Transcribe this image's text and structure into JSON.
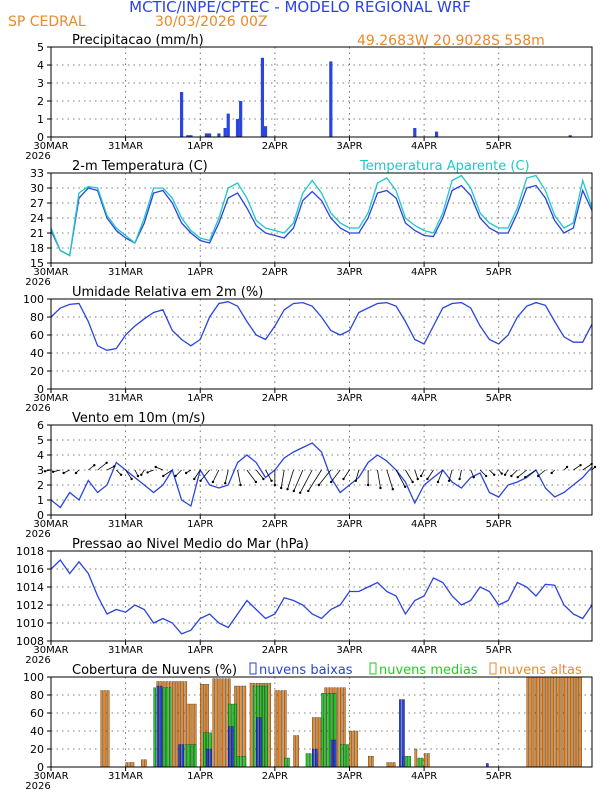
{
  "header": {
    "title": "MCTIC/INPE/CPTEC - MODELO REGIONAL WRF",
    "station": "SP CEDRAL",
    "run": "30/03/2026 00Z",
    "coords": "49.2683W 20.9028S 558m"
  },
  "colors": {
    "blue": "#2a44e0",
    "orange": "#e88a2a",
    "cyan": "#1ec8c8",
    "green": "#22cc22",
    "black": "#000000",
    "grid": "#555555"
  },
  "time_axis": {
    "labels": [
      "30MAR",
      "31MAR",
      "1APR",
      "2APR",
      "3APR",
      "4APR",
      "5APR"
    ],
    "label_hours": [
      0,
      24,
      48,
      72,
      96,
      120,
      144
    ],
    "year": "2026",
    "range_hours": [
      0,
      174
    ]
  },
  "chart_data": [
    {
      "id": "precip",
      "type": "bar",
      "title": "Precipitacao (mm/h)",
      "ylim": [
        0,
        5
      ],
      "yticks": [
        0,
        1,
        2,
        3,
        4,
        5
      ],
      "x_hours": [
        42,
        44,
        45,
        50,
        51,
        54,
        56,
        57,
        60,
        61,
        68,
        69,
        90,
        117,
        124,
        167
      ],
      "values": [
        2.5,
        0.1,
        0.1,
        0.2,
        0.2,
        0.2,
        0.5,
        1.3,
        1.0,
        2.0,
        4.4,
        0.6,
        4.2,
        0.5,
        0.3,
        0.1
      ]
    },
    {
      "id": "temp",
      "type": "line",
      "title": "2-m Temperatura (C)",
      "legend2": "Temperatura Aparente (C)",
      "ylim": [
        15,
        33
      ],
      "yticks": [
        15,
        18,
        21,
        24,
        27,
        30,
        33
      ],
      "series": [
        {
          "name": "2-m Temperatura (C)",
          "color": "blue",
          "x": [
            0,
            3,
            6,
            9,
            12,
            15,
            18,
            21,
            24,
            27,
            30,
            33,
            36,
            39,
            42,
            45,
            48,
            51,
            54,
            57,
            60,
            63,
            66,
            69,
            72,
            75,
            78,
            81,
            84,
            87,
            90,
            93,
            96,
            99,
            102,
            105,
            108,
            111,
            114,
            117,
            120,
            123,
            126,
            129,
            132,
            135,
            138,
            141,
            144,
            147,
            150,
            153,
            156,
            159,
            162,
            165,
            168,
            171,
            174
          ],
          "y": [
            21.5,
            17.5,
            16.5,
            28,
            30,
            29.5,
            24,
            21.5,
            20,
            19,
            23,
            29,
            29.5,
            27,
            23,
            21,
            19.5,
            19,
            23,
            28,
            29,
            26,
            22.5,
            21,
            20.5,
            20,
            22,
            27.5,
            29.3,
            27.5,
            24,
            22,
            21,
            21,
            24,
            29,
            29.5,
            28,
            23,
            21.5,
            20.5,
            20.3,
            24,
            29.5,
            30.5,
            28.5,
            24,
            22,
            21,
            21,
            25,
            30,
            30.5,
            28,
            23.5,
            21,
            22,
            29.5,
            25.5
          ]
        },
        {
          "name": "Temperatura Aparente (C)",
          "color": "cyan",
          "x": [
            0,
            3,
            6,
            9,
            12,
            15,
            18,
            21,
            24,
            27,
            30,
            33,
            36,
            39,
            42,
            45,
            48,
            51,
            54,
            57,
            60,
            63,
            66,
            69,
            72,
            75,
            78,
            81,
            84,
            87,
            90,
            93,
            96,
            99,
            102,
            105,
            108,
            111,
            114,
            117,
            120,
            123,
            126,
            129,
            132,
            135,
            138,
            141,
            144,
            147,
            150,
            153,
            156,
            159,
            162,
            165,
            168,
            171,
            174
          ],
          "y": [
            22,
            17.5,
            16.5,
            29,
            30.3,
            30,
            24.5,
            22,
            20.5,
            19,
            24,
            30,
            30,
            28,
            24,
            21.5,
            20,
            19.5,
            24,
            30,
            31,
            28,
            23.5,
            22,
            21.5,
            21,
            23,
            29,
            31.5,
            29,
            25,
            23,
            22,
            22,
            25,
            31,
            32,
            29.5,
            24,
            22.5,
            21.5,
            21,
            25,
            31.5,
            32.5,
            30,
            25,
            23,
            22,
            22,
            26,
            32,
            32.5,
            29.5,
            24.5,
            22,
            23,
            31.5,
            26
          ]
        }
      ]
    },
    {
      "id": "rh",
      "type": "line",
      "title": "Umidade Relativa em 2m (%)",
      "ylim": [
        0,
        100
      ],
      "yticks": [
        0,
        20,
        40,
        60,
        80,
        100
      ],
      "series": [
        {
          "name": "Umidade Relativa em 2m (%)",
          "color": "blue",
          "x": [
            0,
            3,
            6,
            9,
            12,
            15,
            18,
            21,
            24,
            27,
            30,
            33,
            36,
            39,
            42,
            45,
            48,
            51,
            54,
            57,
            60,
            63,
            66,
            69,
            72,
            75,
            78,
            81,
            84,
            87,
            90,
            93,
            96,
            99,
            102,
            105,
            108,
            111,
            114,
            117,
            120,
            123,
            126,
            129,
            132,
            135,
            138,
            141,
            144,
            147,
            150,
            153,
            156,
            159,
            162,
            165,
            168,
            171,
            174
          ],
          "y": [
            80,
            90,
            94,
            95,
            75,
            48,
            43,
            45,
            60,
            70,
            78,
            85,
            88,
            65,
            55,
            48,
            55,
            80,
            95,
            97,
            92,
            75,
            60,
            55,
            70,
            88,
            95,
            96,
            92,
            80,
            65,
            60,
            65,
            85,
            90,
            95,
            96,
            92,
            75,
            55,
            50,
            70,
            90,
            95,
            96,
            90,
            70,
            55,
            50,
            60,
            80,
            92,
            96,
            93,
            75,
            58,
            52,
            52,
            72
          ]
        }
      ]
    },
    {
      "id": "wind",
      "type": "line",
      "title": "Vento em 10m (m/s)",
      "ylim": [
        0,
        6
      ],
      "yticks": [
        0,
        1,
        2,
        3,
        4,
        5,
        6
      ],
      "series": [
        {
          "name": "Vento em 10m (m/s)",
          "color": "blue",
          "x": [
            0,
            3,
            6,
            9,
            12,
            15,
            18,
            21,
            24,
            27,
            30,
            33,
            36,
            39,
            42,
            45,
            48,
            51,
            54,
            57,
            60,
            63,
            66,
            69,
            72,
            75,
            78,
            81,
            84,
            87,
            90,
            93,
            96,
            99,
            102,
            105,
            108,
            111,
            114,
            117,
            120,
            123,
            126,
            129,
            132,
            135,
            138,
            141,
            144,
            147,
            150,
            153,
            156,
            159,
            162,
            165,
            168,
            171,
            174
          ],
          "y": [
            1,
            0.5,
            1.5,
            1.0,
            2.3,
            1.5,
            2.0,
            3.5,
            3.0,
            2.5,
            2.0,
            1.5,
            2.0,
            3.0,
            1.0,
            0.6,
            3.0,
            2.0,
            1.8,
            2.0,
            3.5,
            4.0,
            3.5,
            2.5,
            3.0,
            3.8,
            4.2,
            4.5,
            4.8,
            4.2,
            2.5,
            1.5,
            2.0,
            2.5,
            3.5,
            4.0,
            3.6,
            3.0,
            2.2,
            0.8,
            2.0,
            2.5,
            3.0,
            2.2,
            1.8,
            2.5,
            2.8,
            1.5,
            1.2,
            2.0,
            2.2,
            2.5,
            3.0,
            1.8,
            1.2,
            1.5,
            2.0,
            2.5,
            3.2
          ]
        }
      ]
    },
    {
      "id": "pres",
      "type": "line",
      "title": "Pressao ao Nivel Medio do Mar (hPa)",
      "ylim": [
        1008,
        1018
      ],
      "yticks": [
        1008,
        1010,
        1012,
        1014,
        1016,
        1018
      ],
      "series": [
        {
          "name": "Pressao ao Nivel Medio do Mar (hPa)",
          "color": "blue",
          "x": [
            0,
            3,
            6,
            9,
            12,
            15,
            18,
            21,
            24,
            27,
            30,
            33,
            36,
            39,
            42,
            45,
            48,
            51,
            54,
            57,
            60,
            63,
            66,
            69,
            72,
            75,
            78,
            81,
            84,
            87,
            90,
            93,
            96,
            99,
            102,
            105,
            108,
            111,
            114,
            117,
            120,
            123,
            126,
            129,
            132,
            135,
            138,
            141,
            144,
            147,
            150,
            153,
            156,
            159,
            162,
            165,
            168,
            171,
            174
          ],
          "y": [
            1016,
            1017,
            1015.5,
            1016.8,
            1015.5,
            1013,
            1011,
            1011.5,
            1011.2,
            1012,
            1011.5,
            1010,
            1010.5,
            1010,
            1008.8,
            1009.2,
            1010.5,
            1011,
            1010,
            1009.5,
            1011,
            1012.5,
            1011.5,
            1010.5,
            1011,
            1012.8,
            1012.5,
            1012,
            1011,
            1010.5,
            1011.5,
            1012,
            1013.5,
            1013.5,
            1014,
            1014.5,
            1013.5,
            1013,
            1011,
            1012.5,
            1013,
            1015,
            1014.5,
            1013,
            1012,
            1012.5,
            1014,
            1013.5,
            1012,
            1012.5,
            1014.5,
            1014,
            1013,
            1014.3,
            1014.2,
            1012,
            1011,
            1010.5,
            1012
          ]
        }
      ]
    },
    {
      "id": "clouds",
      "type": "bar",
      "title": "Cobertura de Nuvens (%)",
      "legend": [
        "nuvens baixas",
        "nuvens medias",
        "nuvens altas"
      ],
      "ylim": [
        0,
        100
      ],
      "yticks": [
        0,
        20,
        40,
        60,
        80,
        100
      ],
      "series": [
        {
          "name": "nuvens altas",
          "color": "orange",
          "ranges": [
            [
              16,
              19,
              85
            ],
            [
              24,
              27,
              5
            ],
            [
              29,
              31,
              8
            ],
            [
              34,
              44,
              95
            ],
            [
              44,
              47,
              70
            ],
            [
              48,
              51,
              92
            ],
            [
              52,
              58,
              98
            ],
            [
              59,
              63,
              90
            ],
            [
              64,
              71,
              93
            ],
            [
              72,
              76,
              85
            ],
            [
              78,
              80,
              35
            ],
            [
              84,
              88,
              55
            ],
            [
              88,
              95,
              88
            ],
            [
              96,
              99,
              40
            ],
            [
              102,
              104,
              12
            ],
            [
              108,
              111,
              5
            ],
            [
              117,
              118,
              20
            ],
            [
              120,
              122,
              15
            ],
            [
              153,
              171,
              100
            ]
          ]
        },
        {
          "name": "nuvens medias",
          "color": "green",
          "ranges": [
            [
              33,
              39,
              88
            ],
            [
              43,
              47,
              25
            ],
            [
              49,
              52,
              38
            ],
            [
              57,
              60,
              70
            ],
            [
              60,
              63,
              12
            ],
            [
              65,
              70,
              90
            ],
            [
              75,
              77,
              10
            ],
            [
              82,
              86,
              15
            ],
            [
              87,
              92,
              82
            ],
            [
              93,
              96,
              25
            ],
            [
              113,
              116,
              12
            ],
            [
              118,
              120,
              10
            ]
          ]
        },
        {
          "name": "nuvens baixas",
          "color": "blue",
          "ranges": [
            [
              34,
              36,
              90
            ],
            [
              41,
              43,
              25
            ],
            [
              50,
              52,
              20
            ],
            [
              57,
              59,
              45
            ],
            [
              66,
              68,
              55
            ],
            [
              84,
              86,
              20
            ],
            [
              90,
              92,
              30
            ],
            [
              112,
              114,
              75
            ],
            [
              140,
              141,
              4
            ]
          ]
        }
      ]
    }
  ],
  "wind_vectors": {
    "x_hours": [
      0,
      3,
      6,
      9,
      12,
      15,
      18,
      21,
      24,
      27,
      30,
      33,
      36,
      39,
      42,
      45,
      48,
      51,
      54,
      57,
      60,
      63,
      66,
      69,
      72,
      75,
      78,
      81,
      84,
      87,
      90,
      93,
      96,
      99,
      102,
      105,
      108,
      111,
      114,
      117,
      120,
      123,
      126,
      129,
      132,
      135,
      138,
      141,
      144,
      147,
      150,
      153,
      156,
      159,
      162,
      165,
      168,
      171,
      174
    ],
    "u": [
      -1,
      -1.2,
      -1,
      -0.5,
      1,
      1.5,
      1.2,
      0.8,
      1,
      0.5,
      -0.5,
      -1,
      -1.2,
      -1.5,
      -1,
      -0.8,
      -1,
      -1.5,
      -1,
      -0.5,
      0.5,
      1.5,
      1.2,
      1,
      0,
      -0.5,
      -1,
      -1.5,
      -2,
      -2.2,
      -2,
      -1.5,
      -1,
      -0.5,
      0,
      0.5,
      1,
      1.5,
      1.2,
      0.5,
      -0.5,
      -1,
      -0.8,
      -0.5,
      -0.3,
      0.5,
      1,
      0.8,
      0.5,
      -0.5,
      -1,
      -1.5,
      -1.8,
      -1.2,
      -0.5,
      0.5,
      1.2,
      1.5,
      0.5
    ],
    "v": [
      -0.2,
      -0.3,
      -0.5,
      -0.5,
      0.8,
      1.2,
      0.6,
      -0.8,
      -1.5,
      -1,
      -0.8,
      -0.4,
      0.5,
      -1,
      -1,
      -0.5,
      -1.5,
      -1.8,
      -2,
      -2.2,
      -2.5,
      -2,
      -1.5,
      -1.8,
      -2.5,
      -3,
      -3.2,
      -3.5,
      -3.8,
      -3.5,
      -2.5,
      -2,
      -1.5,
      -1.8,
      -2.5,
      -3,
      -3.2,
      -2.8,
      -2,
      -1.5,
      -1,
      -1.5,
      -2,
      -1.8,
      -1.5,
      -1.2,
      -1,
      -0.8,
      -0.6,
      -0.8,
      -1,
      -1.2,
      -1.2,
      -1,
      -0.5,
      0.5,
      0.8,
      1,
      0.5
    ]
  }
}
